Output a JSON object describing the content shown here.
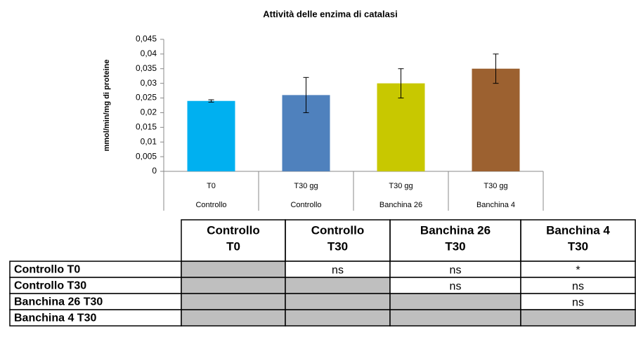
{
  "chart_data": {
    "type": "bar",
    "title": "Attività delle enzima di catalasi",
    "y_label": "mmol/min/mg di proteine",
    "categories": [
      "T0",
      "T30 gg",
      "T30 gg",
      "T30 gg"
    ],
    "category_groups": [
      "Controllo",
      "Controllo",
      "Banchina 26",
      "Banchina 4"
    ],
    "values": [
      0.024,
      0.026,
      0.03,
      0.035
    ],
    "errors": [
      0.0004,
      0.006,
      0.005,
      0.005
    ],
    "colors": [
      "#00b0f0",
      "#4f81bd",
      "#c8c800",
      "#9c6130"
    ],
    "ylim": [
      0,
      0.045
    ],
    "yticks": [
      0,
      {
        "value": 0.005,
        "label": "0,005"
      },
      {
        "value": 0.01,
        "label": "0,01"
      },
      {
        "value": 0.015,
        "label": "0,015"
      },
      {
        "value": 0.02,
        "label": "0,02"
      },
      {
        "value": 0.025,
        "label": "0,025"
      },
      {
        "value": 0.03,
        "label": "0,03"
      },
      {
        "value": 0.035,
        "label": "0,035"
      },
      {
        "value": 0.04,
        "label": "0,04"
      },
      {
        "value": 0.045,
        "label": "0,045"
      }
    ],
    "grid": false
  },
  "table": {
    "header": [
      null,
      [
        "Controllo",
        "T0"
      ],
      [
        "Controllo",
        "T30"
      ],
      [
        "Banchina 26",
        "T30"
      ],
      [
        "Banchina 4",
        "T30"
      ]
    ],
    "rows": [
      [
        "Controllo T0",
        null,
        "ns",
        "ns",
        "*"
      ],
      [
        "Controllo T30",
        null,
        null,
        "ns",
        "ns"
      ],
      [
        "Banchina 26 T30",
        null,
        null,
        null,
        "ns"
      ],
      [
        "Banchina 4 T30",
        null,
        null,
        null,
        null
      ]
    ]
  }
}
